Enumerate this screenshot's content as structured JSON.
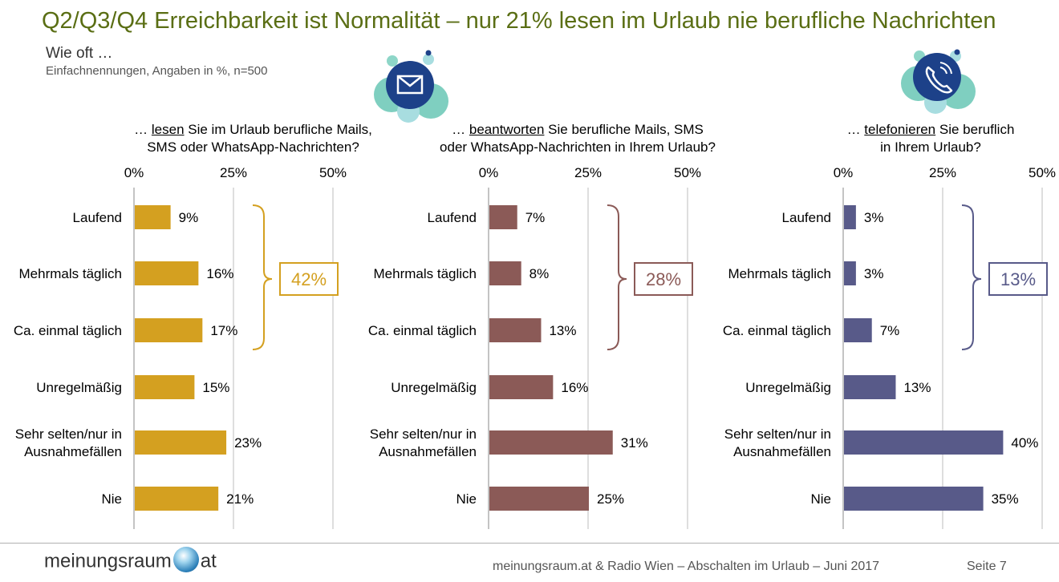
{
  "title": "Q2/Q3/Q4 Erreichbarkeit ist Normalität – nur 21% lesen im Urlaub nie berufliche Nachrichten",
  "subtitle": "Wie oft …",
  "note": "Einfachnennungen, Angaben in %, n=500",
  "questions": [
    {
      "pre": "… ",
      "keyword": "lesen",
      "line1_rest": " Sie im Urlaub berufliche Mails,",
      "line2": "SMS oder WhatsApp-Nachrichten?"
    },
    {
      "pre": "… ",
      "keyword": "beantworten",
      "line1_rest": " Sie berufliche Mails, SMS",
      "line2": "oder WhatsApp-Nachrichten in Ihrem Urlaub?"
    },
    {
      "pre": "… ",
      "keyword": "telefonieren",
      "line1_rest": " Sie beruflich",
      "line2": "in Ihrem Urlaub?"
    }
  ],
  "icons": [
    "envelope-icon",
    "phone-icon"
  ],
  "chart_data": [
    {
      "type": "bar",
      "orientation": "horizontal",
      "categories": [
        "Laufend",
        "Mehrmals täglich",
        "Ca. einmal täglich",
        "Unregelmäßig",
        "Sehr selten/nur in Ausnahmefällen",
        "Nie"
      ],
      "values": [
        9,
        16,
        17,
        15,
        23,
        21
      ],
      "value_labels": [
        "9%",
        "16%",
        "17%",
        "15%",
        "23%",
        "21%"
      ],
      "xlim": [
        0,
        50
      ],
      "ticks": [
        "0%",
        "25%",
        "50%"
      ],
      "color": "#d4a020",
      "bracket_total": "42%"
    },
    {
      "type": "bar",
      "orientation": "horizontal",
      "categories": [
        "Laufend",
        "Mehrmals täglich",
        "Ca. einmal täglich",
        "Unregelmäßig",
        "Sehr selten/nur in Ausnahmefällen",
        "Nie"
      ],
      "values": [
        7,
        8,
        13,
        16,
        31,
        25
      ],
      "value_labels": [
        "7%",
        "8%",
        "13%",
        "16%",
        "31%",
        "25%"
      ],
      "xlim": [
        0,
        50
      ],
      "ticks": [
        "0%",
        "25%",
        "50%"
      ],
      "color": "#8b5a57",
      "bracket_total": "28%"
    },
    {
      "type": "bar",
      "orientation": "horizontal",
      "categories": [
        "Laufend",
        "Mehrmals täglich",
        "Ca. einmal täglich",
        "Unregelmäßig",
        "Sehr selten/nur in Ausnahmefällen",
        "Nie"
      ],
      "values": [
        3,
        3,
        7,
        13,
        40,
        35
      ],
      "value_labels": [
        "3%",
        "3%",
        "7%",
        "13%",
        "40%",
        "35%"
      ],
      "xlim": [
        0,
        50
      ],
      "ticks": [
        "0%",
        "25%",
        "50%"
      ],
      "color": "#585a89",
      "bracket_total": "13%"
    }
  ],
  "footer": {
    "logo_left": "meinungsraum",
    "logo_right": "at",
    "text": "meinungsraum.at & Radio Wien – Abschalten im Urlaub – Juni 2017",
    "page": "Seite 7"
  }
}
